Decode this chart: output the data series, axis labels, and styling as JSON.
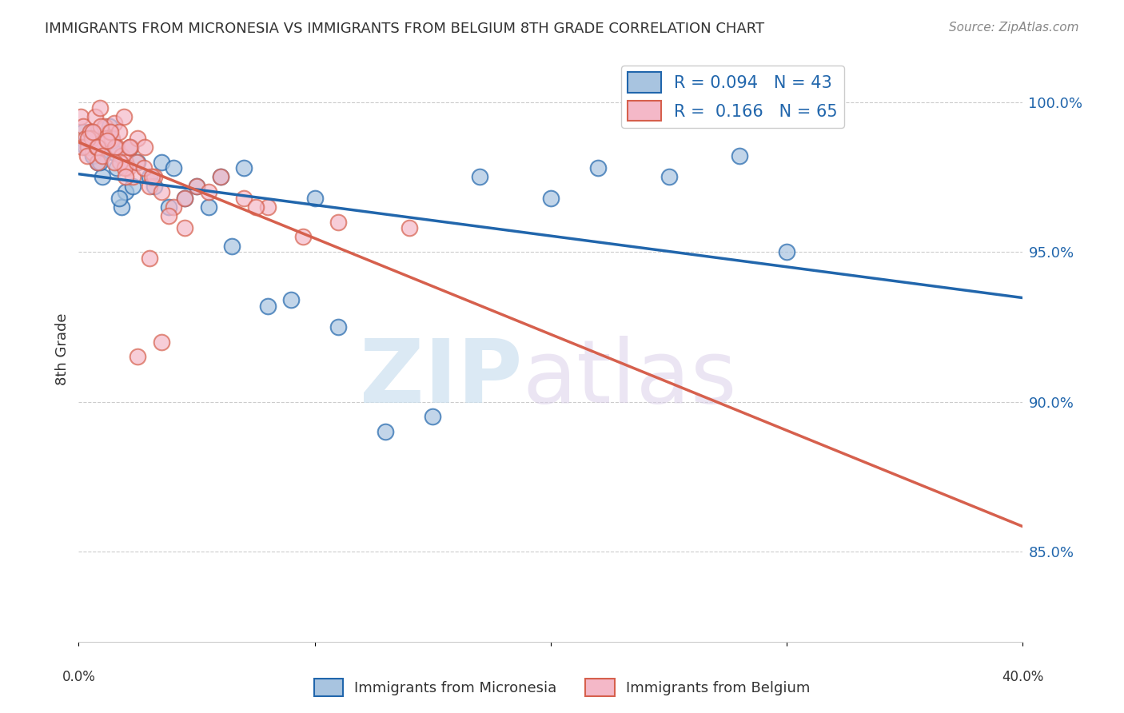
{
  "title": "IMMIGRANTS FROM MICRONESIA VS IMMIGRANTS FROM BELGIUM 8TH GRADE CORRELATION CHART",
  "source": "Source: ZipAtlas.com",
  "ylabel": "8th Grade",
  "xlim": [
    0.0,
    40.0
  ],
  "ylim": [
    82.0,
    101.5
  ],
  "blue_R": 0.094,
  "blue_N": 43,
  "pink_R": 0.166,
  "pink_N": 65,
  "blue_color": "#a8c4e0",
  "blue_line_color": "#2166ac",
  "pink_color": "#f4b8c8",
  "pink_line_color": "#d6604d",
  "legend_text_color": "#2166ac",
  "ytick_values": [
    85.0,
    90.0,
    95.0,
    100.0
  ],
  "blue_scatter_x": [
    0.3,
    0.5,
    0.8,
    1.0,
    1.2,
    1.3,
    1.5,
    1.6,
    1.8,
    2.0,
    2.2,
    2.5,
    3.0,
    3.2,
    3.5,
    4.0,
    4.5,
    5.0,
    5.5,
    6.0,
    7.0,
    8.0,
    9.0,
    10.0,
    11.0,
    13.0,
    15.0,
    17.0,
    20.0,
    22.0,
    25.0,
    28.0,
    0.2,
    0.4,
    0.6,
    0.9,
    1.1,
    1.4,
    1.7,
    2.3,
    3.8,
    6.5,
    30.0
  ],
  "blue_scatter_y": [
    98.5,
    99.0,
    98.0,
    97.5,
    98.8,
    99.2,
    98.3,
    97.8,
    96.5,
    97.0,
    98.5,
    98.0,
    97.5,
    97.2,
    98.0,
    97.8,
    96.8,
    97.2,
    96.5,
    97.5,
    97.8,
    93.2,
    93.4,
    96.8,
    92.5,
    89.0,
    89.5,
    97.5,
    96.8,
    97.8,
    97.5,
    98.2,
    99.0,
    98.5,
    98.2,
    98.0,
    98.6,
    98.7,
    96.8,
    97.2,
    96.5,
    95.2,
    95.0
  ],
  "pink_scatter_x": [
    0.1,
    0.2,
    0.3,
    0.4,
    0.5,
    0.6,
    0.7,
    0.8,
    0.9,
    1.0,
    1.1,
    1.2,
    1.3,
    1.4,
    1.5,
    1.6,
    1.7,
    1.8,
    1.9,
    2.0,
    2.1,
    2.2,
    2.3,
    2.5,
    2.8,
    3.0,
    3.2,
    3.5,
    4.0,
    4.5,
    5.0,
    6.0,
    7.0,
    8.0,
    0.15,
    0.35,
    0.55,
    0.75,
    0.95,
    1.15,
    1.35,
    1.55,
    1.75,
    1.95,
    2.15,
    2.45,
    2.75,
    3.1,
    3.8,
    4.5,
    5.5,
    7.5,
    9.5,
    11.0,
    14.0,
    3.0,
    0.4,
    0.6,
    0.8,
    1.0,
    1.2,
    1.5,
    2.0,
    2.5,
    3.5
  ],
  "pink_scatter_y": [
    99.5,
    99.2,
    98.8,
    98.5,
    99.0,
    98.3,
    99.5,
    98.0,
    99.8,
    98.5,
    99.2,
    98.7,
    99.0,
    98.8,
    99.3,
    98.5,
    99.0,
    98.2,
    99.5,
    98.0,
    97.8,
    98.5,
    97.5,
    98.8,
    98.5,
    97.2,
    97.5,
    97.0,
    96.5,
    96.8,
    97.2,
    97.5,
    96.8,
    96.5,
    98.5,
    98.2,
    98.8,
    98.5,
    99.2,
    98.8,
    99.0,
    98.5,
    98.0,
    97.8,
    98.5,
    98.0,
    97.8,
    97.5,
    96.2,
    95.8,
    97.0,
    96.5,
    95.5,
    96.0,
    95.8,
    94.8,
    98.8,
    99.0,
    98.5,
    98.2,
    98.7,
    98.0,
    97.5,
    91.5,
    92.0
  ]
}
